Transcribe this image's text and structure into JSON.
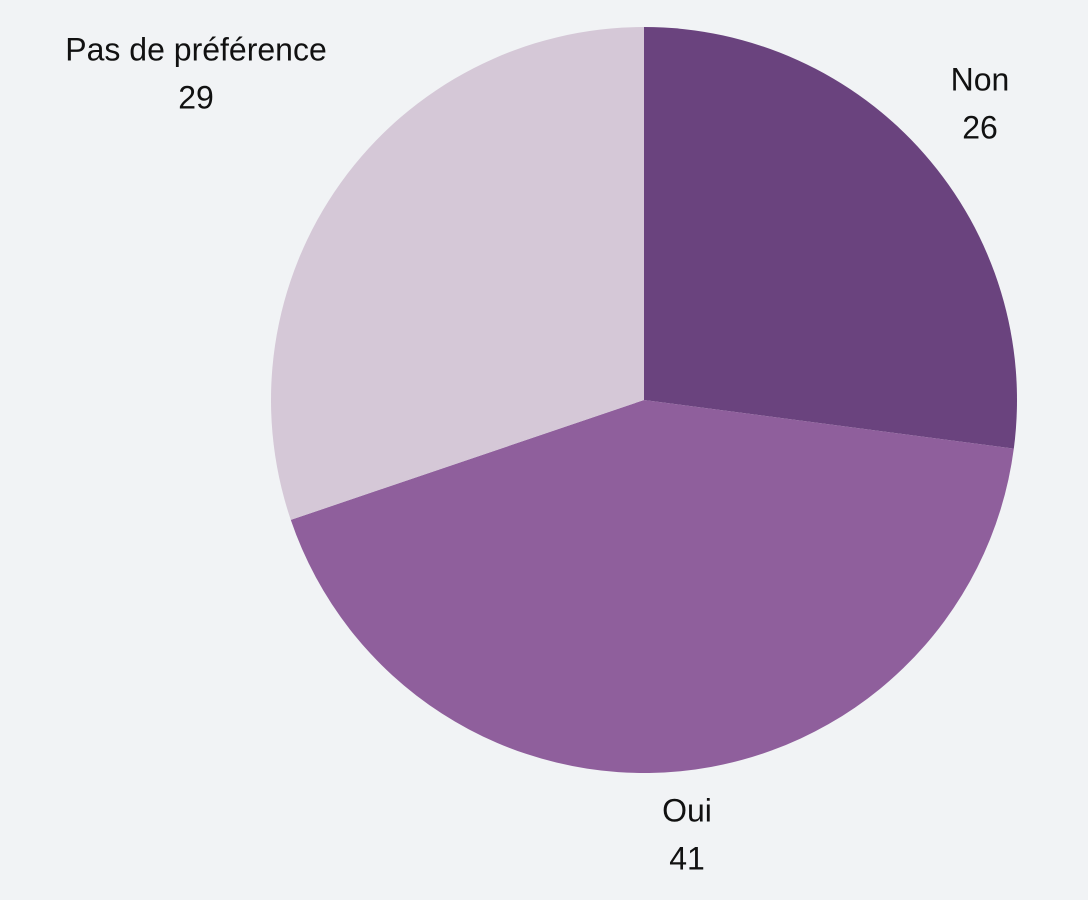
{
  "chart_data": {
    "type": "pie",
    "categories": [
      "Non",
      "Oui",
      "Pas de préférence"
    ],
    "values": [
      26,
      41,
      29
    ],
    "colors": [
      "#6a437e",
      "#8f5f9c",
      "#d5c8d7"
    ]
  }
}
